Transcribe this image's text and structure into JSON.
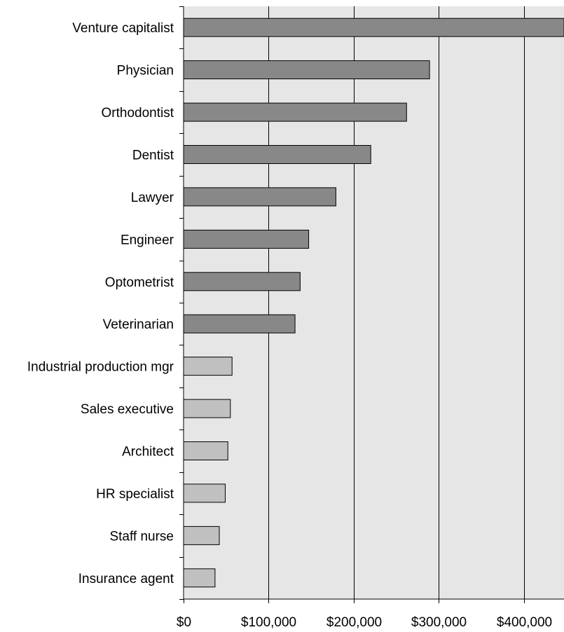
{
  "chart_data": {
    "type": "bar",
    "orientation": "horizontal",
    "title": "",
    "xlabel": "",
    "ylabel": "",
    "categories": [
      "Venture capitalist",
      "Physician",
      "Orthodontist",
      "Dentist",
      "Lawyer",
      "Engineer",
      "Optometrist",
      "Veterinarian",
      "Industrial production mgr",
      "Sales executive",
      "Architect",
      "HR specialist",
      "Staff nurse",
      "Insurance agent"
    ],
    "values": [
      447000,
      289000,
      262000,
      220000,
      179000,
      147000,
      137000,
      131000,
      57000,
      55000,
      52000,
      49000,
      42000,
      37000
    ],
    "bar_colors": [
      "#888888",
      "#888888",
      "#888888",
      "#888888",
      "#888888",
      "#888888",
      "#888888",
      "#888888",
      "#c0c0c0",
      "#c0c0c0",
      "#c0c0c0",
      "#c0c0c0",
      "#c0c0c0",
      "#c0c0c0"
    ],
    "xlim": [
      0,
      447000
    ],
    "x_ticks": [
      0,
      100000,
      200000,
      300000,
      400000
    ],
    "x_tick_labels": [
      "$0",
      "$100,000",
      "$200,000",
      "$300,000",
      "$400,000"
    ],
    "grid": "vertical",
    "legend": "none",
    "plot_background": "#e6e6e6"
  }
}
